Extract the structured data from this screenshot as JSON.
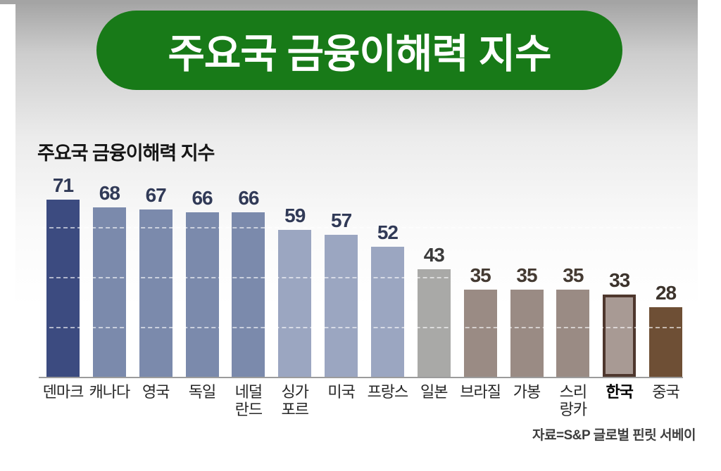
{
  "banner": {
    "title": "주요국 금융이해력 지수"
  },
  "chart_data": {
    "type": "bar",
    "title": "주요국 금융이해력 지수",
    "source": "자료=S&P 글로벌 핀릿 서베이",
    "xlabel": "",
    "ylabel": "",
    "ylim": [
      0,
      75
    ],
    "grid": "dashed-horizontal",
    "gridline_values": [
      20,
      40,
      60
    ],
    "legend": "none",
    "categories": [
      "덴마크",
      "캐나다",
      "영국",
      "독일",
      "네덜란드",
      "싱가포르",
      "미국",
      "프랑스",
      "일본",
      "브라질",
      "가봉",
      "스리랑카",
      "한국",
      "중국"
    ],
    "values": [
      71,
      68,
      67,
      66,
      66,
      59,
      57,
      52,
      43,
      35,
      35,
      35,
      33,
      28
    ],
    "bars": [
      {
        "label": "덴마크",
        "value": 71,
        "fill": "#3c4b80",
        "value_color": "#313a57"
      },
      {
        "label": "캐나다",
        "value": 68,
        "fill": "#7b8aac",
        "value_color": "#313a57"
      },
      {
        "label": "영국",
        "value": 67,
        "fill": "#7b8aac",
        "value_color": "#313a57"
      },
      {
        "label": "독일",
        "value": 66,
        "fill": "#7b8aac",
        "value_color": "#313a57"
      },
      {
        "label": "네덜란드",
        "display_label": "네덜\n란드",
        "value": 66,
        "fill": "#7b8aac",
        "value_color": "#313a57"
      },
      {
        "label": "싱가포르",
        "display_label": "싱가\n포르",
        "value": 59,
        "fill": "#9ba6c1",
        "value_color": "#313a57"
      },
      {
        "label": "미국",
        "value": 57,
        "fill": "#9ba6c1",
        "value_color": "#313a57"
      },
      {
        "label": "프랑스",
        "value": 52,
        "fill": "#9ba6c1",
        "value_color": "#313a57"
      },
      {
        "label": "일본",
        "value": 43,
        "fill": "#a9a9a7",
        "value_color": "#3b3b3b"
      },
      {
        "label": "브라질",
        "value": 35,
        "fill": "#9a8b84",
        "value_color": "#443a32"
      },
      {
        "label": "가봉",
        "value": 35,
        "fill": "#9a8b84",
        "value_color": "#443a32"
      },
      {
        "label": "스리랑카",
        "display_label": "스리\n랑카",
        "value": 35,
        "fill": "#9a8b84",
        "value_color": "#443a32"
      },
      {
        "label": "한국",
        "value": 33,
        "fill": "#a89a94",
        "border_color": "#4e372d",
        "bold_label": true,
        "highlight": true,
        "value_color": "#3c332c"
      },
      {
        "label": "중국",
        "value": 28,
        "fill": "#6e4f35",
        "value_color": "#3c332c"
      }
    ],
    "highlight_note": "한국 bar outlined in dark brown"
  },
  "frame": {
    "banner_green": "#187a18",
    "top_strip_gray": "#a4a4a4",
    "axis_line_gray": "#9c9c9c"
  }
}
